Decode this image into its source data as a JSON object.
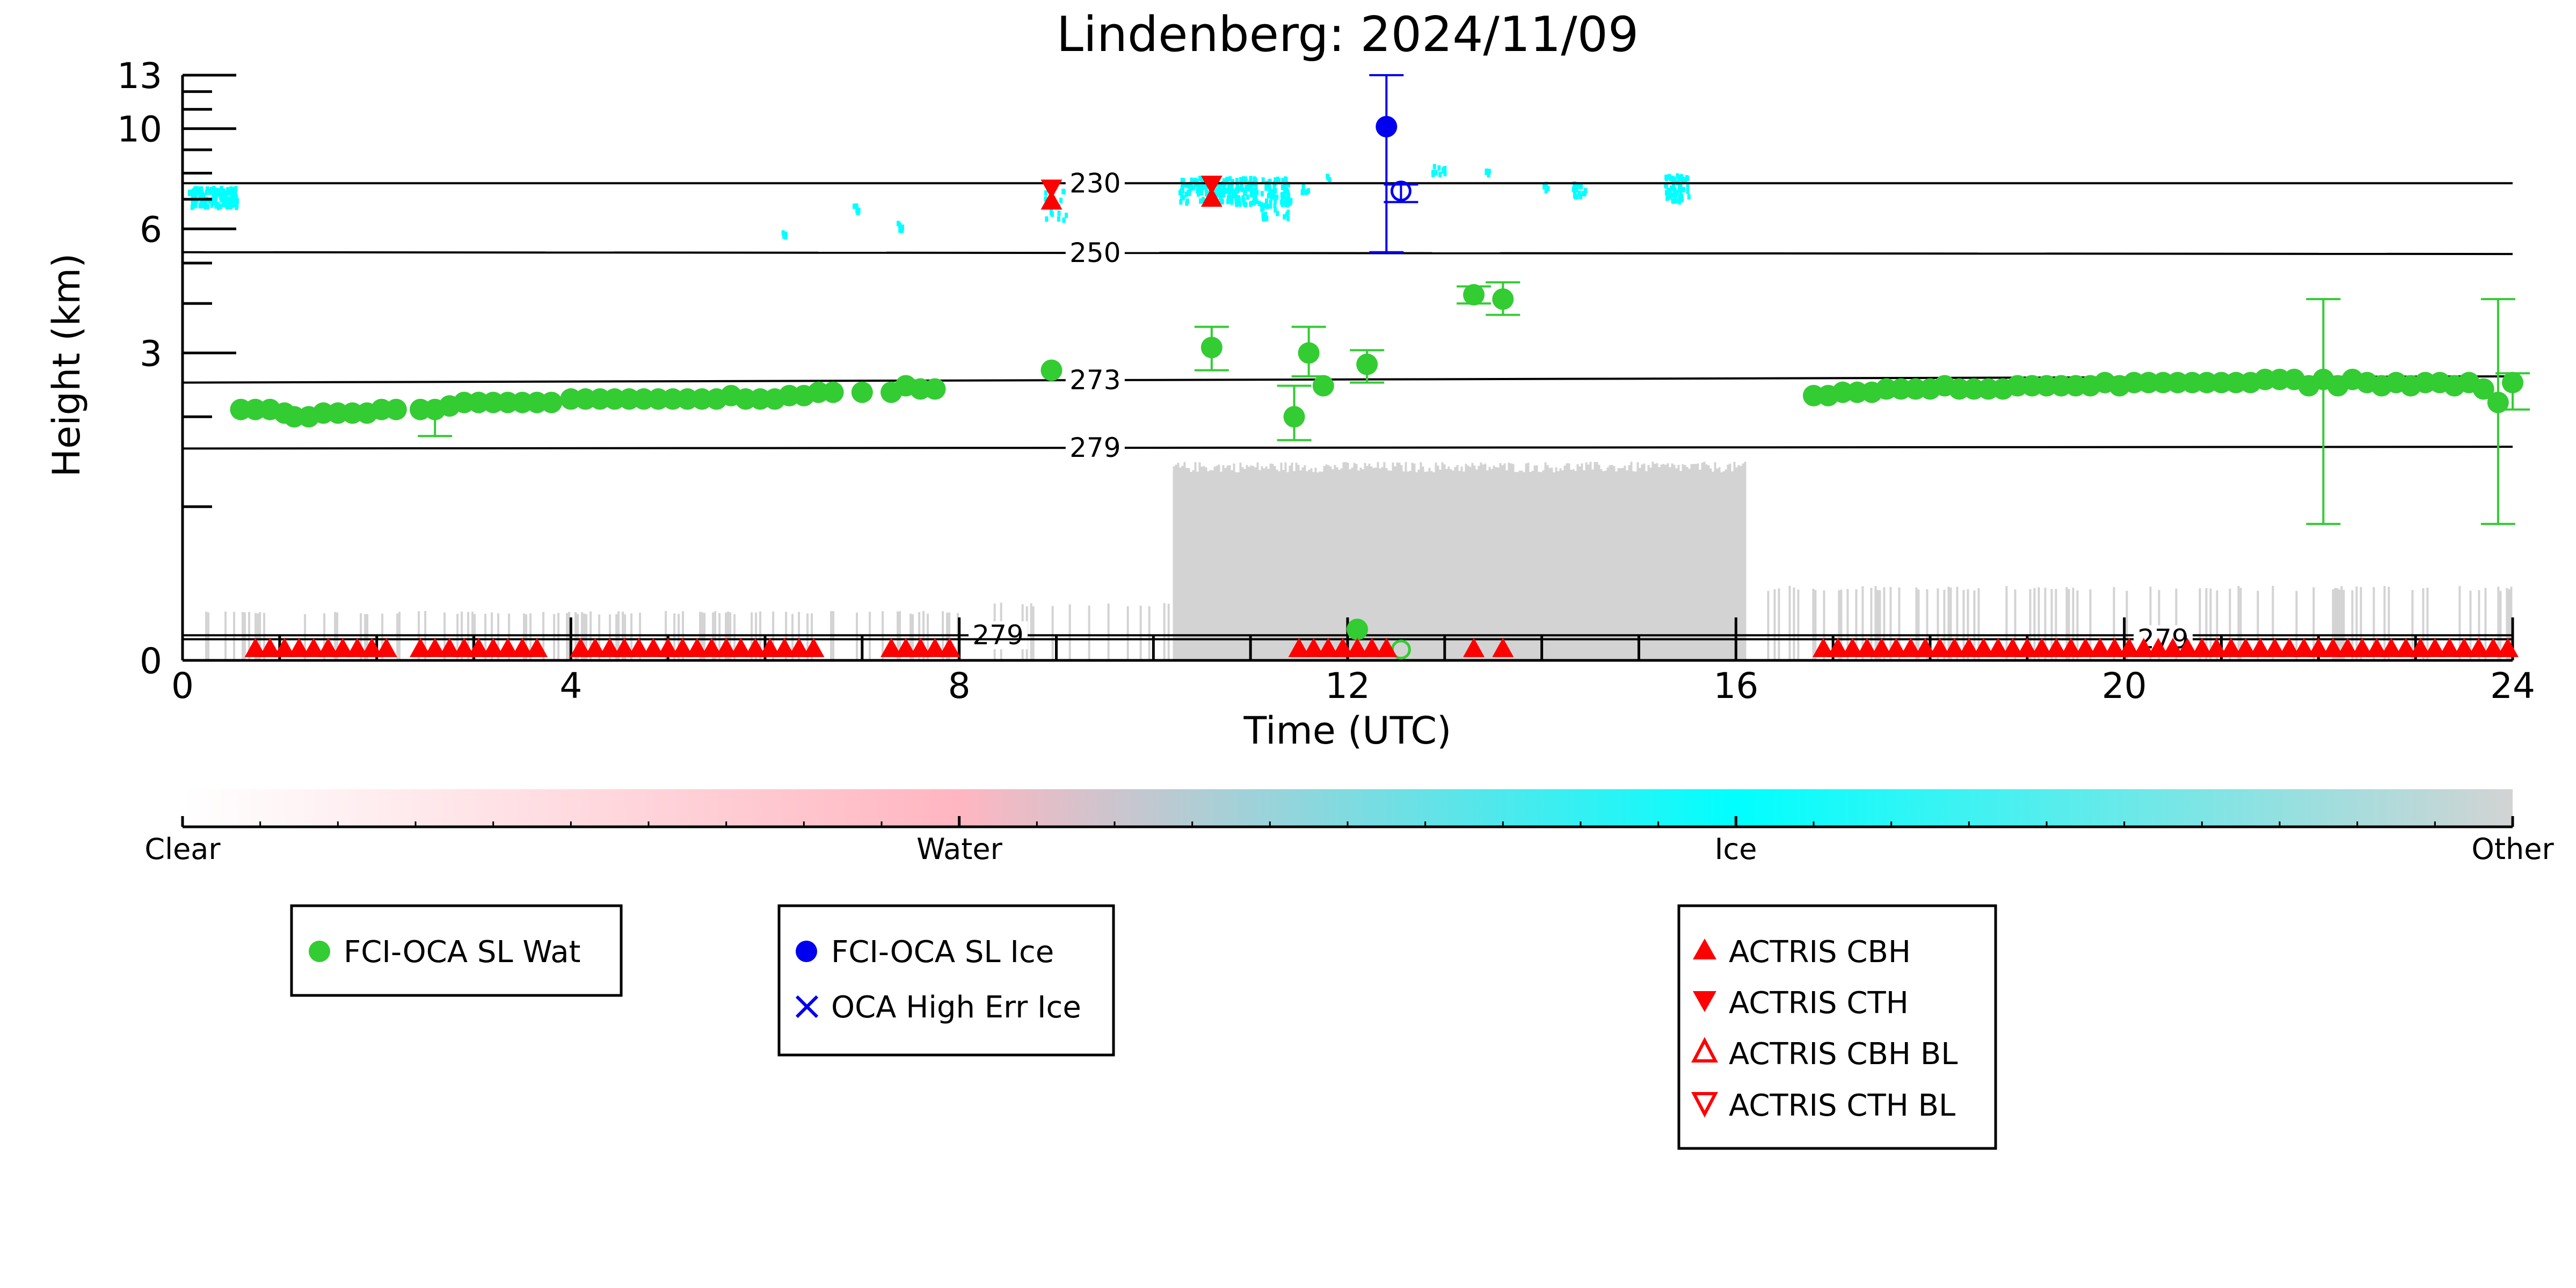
{
  "chart_data": {
    "type": "scatter",
    "title": "Lindenberg: 2024/11/09",
    "xlabel": "Time (UTC)",
    "ylabel": "Height (km)",
    "xlim": [
      0,
      24
    ],
    "ylim": [
      0,
      13
    ],
    "y_scale": "log1p",
    "x_ticks": [
      "0",
      "4",
      "8",
      "12",
      "16",
      "20",
      "24"
    ],
    "y_ticks": [
      "0",
      "3",
      "6",
      "10",
      "13"
    ],
    "isotherms": [
      {
        "label": "230",
        "heights": [
          7.6,
          7.6
        ]
      },
      {
        "label": "250",
        "heights": [
          5.3,
          5.25
        ]
      },
      {
        "label": "273",
        "heights": [
          2.5,
          2.6
        ]
      },
      {
        "label": "279",
        "heights": [
          1.6,
          1.62
        ]
      },
      {
        "label": "279",
        "heights": [
          0.12,
          0.12
        ]
      },
      {
        "label": "279",
        "heights": [
          0.1,
          0.1
        ]
      }
    ],
    "series": [
      {
        "name": "FCI-OCA SL Wat",
        "color": "#33cc33",
        "points": [
          [
            0.6,
            2.1
          ],
          [
            0.75,
            2.1
          ],
          [
            0.9,
            2.1
          ],
          [
            1.05,
            2.05
          ],
          [
            1.15,
            2.0
          ],
          [
            1.3,
            2.0
          ],
          [
            1.45,
            2.05
          ],
          [
            1.6,
            2.05
          ],
          [
            1.75,
            2.05
          ],
          [
            1.9,
            2.05
          ],
          [
            2.05,
            2.1
          ],
          [
            2.2,
            2.1
          ],
          [
            2.45,
            2.1
          ],
          [
            2.6,
            2.1
          ],
          [
            2.75,
            2.15
          ],
          [
            2.9,
            2.2
          ],
          [
            3.05,
            2.2
          ],
          [
            3.2,
            2.2
          ],
          [
            3.35,
            2.2
          ],
          [
            3.5,
            2.2
          ],
          [
            3.65,
            2.2
          ],
          [
            3.8,
            2.2
          ],
          [
            4.0,
            2.25
          ],
          [
            4.15,
            2.25
          ],
          [
            4.3,
            2.25
          ],
          [
            4.45,
            2.25
          ],
          [
            4.6,
            2.25
          ],
          [
            4.75,
            2.25
          ],
          [
            4.9,
            2.25
          ],
          [
            5.05,
            2.25
          ],
          [
            5.2,
            2.25
          ],
          [
            5.35,
            2.25
          ],
          [
            5.5,
            2.25
          ],
          [
            5.65,
            2.3
          ],
          [
            5.8,
            2.25
          ],
          [
            5.95,
            2.25
          ],
          [
            6.1,
            2.25
          ],
          [
            6.25,
            2.3
          ],
          [
            6.4,
            2.3
          ],
          [
            6.55,
            2.35
          ],
          [
            6.7,
            2.35
          ],
          [
            7.0,
            2.35
          ],
          [
            7.3,
            2.35
          ],
          [
            7.45,
            2.45
          ],
          [
            7.6,
            2.4
          ],
          [
            7.75,
            2.4
          ],
          [
            8.95,
            2.7
          ],
          [
            10.6,
            3.1
          ],
          [
            11.45,
            2.0
          ],
          [
            11.6,
            3.0
          ],
          [
            11.75,
            2.45
          ],
          [
            12.2,
            2.8
          ],
          [
            13.3,
            4.2
          ],
          [
            13.6,
            4.1
          ],
          [
            16.8,
            2.3
          ],
          [
            16.95,
            2.3
          ],
          [
            17.1,
            2.35
          ],
          [
            17.25,
            2.35
          ],
          [
            17.4,
            2.35
          ],
          [
            17.55,
            2.4
          ],
          [
            17.7,
            2.4
          ],
          [
            17.85,
            2.4
          ],
          [
            18.0,
            2.4
          ],
          [
            18.15,
            2.45
          ],
          [
            18.3,
            2.4
          ],
          [
            18.45,
            2.4
          ],
          [
            18.6,
            2.4
          ],
          [
            18.75,
            2.4
          ],
          [
            18.9,
            2.45
          ],
          [
            19.05,
            2.45
          ],
          [
            19.2,
            2.45
          ],
          [
            19.35,
            2.45
          ],
          [
            19.5,
            2.45
          ],
          [
            19.65,
            2.45
          ],
          [
            19.8,
            2.5
          ],
          [
            19.95,
            2.45
          ],
          [
            20.1,
            2.5
          ],
          [
            20.25,
            2.5
          ],
          [
            20.4,
            2.5
          ],
          [
            20.55,
            2.5
          ],
          [
            20.7,
            2.5
          ],
          [
            20.85,
            2.5
          ],
          [
            21.0,
            2.5
          ],
          [
            21.15,
            2.5
          ],
          [
            21.3,
            2.5
          ],
          [
            21.45,
            2.55
          ],
          [
            21.6,
            2.55
          ],
          [
            21.75,
            2.55
          ],
          [
            21.9,
            2.45
          ],
          [
            22.05,
            2.55
          ],
          [
            22.2,
            2.45
          ],
          [
            22.35,
            2.55
          ],
          [
            22.5,
            2.5
          ],
          [
            22.65,
            2.45
          ],
          [
            22.8,
            2.5
          ],
          [
            22.95,
            2.45
          ],
          [
            23.1,
            2.5
          ],
          [
            23.25,
            2.5
          ],
          [
            23.4,
            2.45
          ],
          [
            23.55,
            2.5
          ],
          [
            23.7,
            2.4
          ],
          [
            23.85,
            2.2
          ],
          [
            24.0,
            2.5
          ]
        ]
      },
      {
        "name": "FCI-OCA SL Ice",
        "color": "#0000ee",
        "points": [
          [
            12.4,
            10.1
          ],
          [
            12.55,
            7.3
          ]
        ]
      },
      {
        "name": "OCA High Err Ice",
        "color": "#0000ee",
        "points": []
      },
      {
        "name": "ACTRIS CBH",
        "color": "#ff0000",
        "points": [
          [
            8.95,
            6.9
          ],
          [
            10.6,
            7.0
          ],
          [
            1.0,
            0.02
          ],
          [
            2.5,
            0.02
          ],
          [
            4.5,
            0.02
          ],
          [
            6.5,
            0.02
          ],
          [
            12.0,
            0.02
          ],
          [
            13.3,
            0.02
          ],
          [
            13.6,
            0.02
          ],
          [
            17.0,
            0.02
          ],
          [
            20.0,
            0.02
          ],
          [
            23.0,
            0.02
          ]
        ]
      },
      {
        "name": "ACTRIS CTH",
        "color": "#ff0000",
        "points": [
          [
            8.95,
            7.45
          ],
          [
            10.6,
            7.6
          ],
          [
            11.8,
            0.05
          ],
          [
            12.3,
            0.05
          ]
        ]
      },
      {
        "name": "ACTRIS CBH BL",
        "color": "#ff0000",
        "points": []
      },
      {
        "name": "ACTRIS CTH BL",
        "color": "#ff0000",
        "points": []
      }
    ],
    "colorbar": {
      "labels": [
        "Clear",
        "Water",
        "Ice",
        "Other"
      ],
      "colors": [
        "#ffffff",
        "#ffb6c1",
        "#00ffff",
        "#d3d3d3"
      ]
    },
    "legends": [
      {
        "items": [
          {
            "label": "FCI-OCA SL Wat",
            "marker": "circle",
            "color": "#33cc33"
          }
        ]
      },
      {
        "items": [
          {
            "label": "FCI-OCA SL Ice",
            "marker": "circle",
            "color": "#0000ee"
          },
          {
            "label": "OCA High Err Ice",
            "marker": "x",
            "color": "#0000ee"
          }
        ]
      },
      {
        "items": [
          {
            "label": "ACTRIS CBH",
            "marker": "triangle-up",
            "color": "#ff0000"
          },
          {
            "label": "ACTRIS CTH",
            "marker": "triangle-down",
            "color": "#ff0000"
          },
          {
            "label": "ACTRIS CBH BL",
            "marker": "triangle-up-open",
            "color": "#ff0000"
          },
          {
            "label": "ACTRIS CTH BL",
            "marker": "triangle-down-open",
            "color": "#ff0000"
          }
        ]
      }
    ]
  }
}
